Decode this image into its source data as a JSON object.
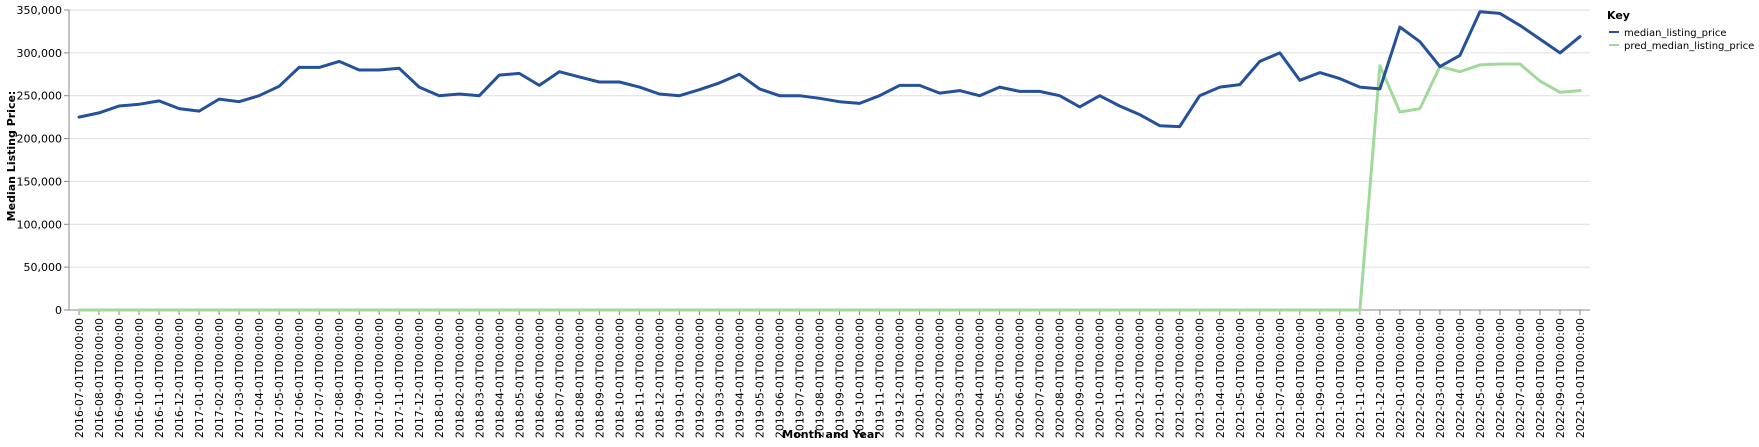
{
  "chart_data": {
    "type": "line",
    "xlabel": "Month and Year",
    "ylabel": "Median Listing Price:",
    "ylim": [
      0,
      350000
    ],
    "yticks": [
      0,
      50000,
      100000,
      150000,
      200000,
      250000,
      300000,
      350000
    ],
    "ytick_labels": [
      "0",
      "50,000",
      "100,000",
      "150,000",
      "200,000",
      "250,000",
      "300,000",
      "350,000"
    ],
    "grid": "horizontal",
    "legend": {
      "title": "Key",
      "placement": "top-right"
    },
    "x": [
      "2016-07-01T00:00:00",
      "2016-08-01T00:00:00",
      "2016-09-01T00:00:00",
      "2016-10-01T00:00:00",
      "2016-11-01T00:00:00",
      "2016-12-01T00:00:00",
      "2017-01-01T00:00:00",
      "2017-02-01T00:00:00",
      "2017-03-01T00:00:00",
      "2017-04-01T00:00:00",
      "2017-05-01T00:00:00",
      "2017-06-01T00:00:00",
      "2017-07-01T00:00:00",
      "2017-08-01T00:00:00",
      "2017-09-01T00:00:00",
      "2017-10-01T00:00:00",
      "2017-11-01T00:00:00",
      "2017-12-01T00:00:00",
      "2018-01-01T00:00:00",
      "2018-02-01T00:00:00",
      "2018-03-01T00:00:00",
      "2018-04-01T00:00:00",
      "2018-05-01T00:00:00",
      "2018-06-01T00:00:00",
      "2018-07-01T00:00:00",
      "2018-08-01T00:00:00",
      "2018-09-01T00:00:00",
      "2018-10-01T00:00:00",
      "2018-11-01T00:00:00",
      "2018-12-01T00:00:00",
      "2019-01-01T00:00:00",
      "2019-02-01T00:00:00",
      "2019-03-01T00:00:00",
      "2019-04-01T00:00:00",
      "2019-05-01T00:00:00",
      "2019-06-01T00:00:00",
      "2019-07-01T00:00:00",
      "2019-08-01T00:00:00",
      "2019-09-01T00:00:00",
      "2019-10-01T00:00:00",
      "2019-11-01T00:00:00",
      "2019-12-01T00:00:00",
      "2020-01-01T00:00:00",
      "2020-02-01T00:00:00",
      "2020-03-01T00:00:00",
      "2020-04-01T00:00:00",
      "2020-05-01T00:00:00",
      "2020-06-01T00:00:00",
      "2020-07-01T00:00:00",
      "2020-08-01T00:00:00",
      "2020-09-01T00:00:00",
      "2020-10-01T00:00:00",
      "2020-11-01T00:00:00",
      "2020-12-01T00:00:00",
      "2021-01-01T00:00:00",
      "2021-02-01T00:00:00",
      "2021-03-01T00:00:00",
      "2021-04-01T00:00:00",
      "2021-05-01T00:00:00",
      "2021-06-01T00:00:00",
      "2021-07-01T00:00:00",
      "2021-08-01T00:00:00",
      "2021-09-01T00:00:00",
      "2021-10-01T00:00:00",
      "2021-11-01T00:00:00",
      "2021-12-01T00:00:00",
      "2022-01-01T00:00:00",
      "2022-02-01T00:00:00",
      "2022-03-01T00:00:00",
      "2022-04-01T00:00:00",
      "2022-05-01T00:00:00",
      "2022-06-01T00:00:00",
      "2022-07-01T00:00:00",
      "2022-08-01T00:00:00",
      "2022-09-01T00:00:00",
      "2022-10-01T00:00:00"
    ],
    "series": [
      {
        "name": "median_listing_price",
        "color": "#25509a",
        "values": [
          225000,
          230000,
          238000,
          240000,
          244000,
          235000,
          232000,
          246000,
          243000,
          250000,
          261000,
          283000,
          283000,
          290000,
          280000,
          280000,
          282000,
          260000,
          250000,
          252000,
          250000,
          274000,
          276000,
          262000,
          278000,
          272000,
          266000,
          266000,
          260000,
          252000,
          250000,
          257000,
          265000,
          275000,
          258000,
          250000,
          250000,
          247000,
          243000,
          241000,
          250000,
          262000,
          262000,
          253000,
          256000,
          250000,
          260000,
          255000,
          255000,
          250000,
          237000,
          250000,
          238000,
          228000,
          215000,
          214000,
          250000,
          260000,
          263000,
          290000,
          300000,
          268000,
          277000,
          270000,
          260000,
          258000,
          330000,
          313000,
          284000,
          297000,
          348000,
          346000,
          332000,
          316000,
          300000,
          319000
        ]
      },
      {
        "name": "pred_median_listing_price",
        "color": "#a1d99b",
        "values": [
          0,
          0,
          0,
          0,
          0,
          0,
          0,
          0,
          0,
          0,
          0,
          0,
          0,
          0,
          0,
          0,
          0,
          0,
          0,
          0,
          0,
          0,
          0,
          0,
          0,
          0,
          0,
          0,
          0,
          0,
          0,
          0,
          0,
          0,
          0,
          0,
          0,
          0,
          0,
          0,
          0,
          0,
          0,
          0,
          0,
          0,
          0,
          0,
          0,
          0,
          0,
          0,
          0,
          0,
          0,
          0,
          0,
          0,
          0,
          0,
          0,
          0,
          0,
          0,
          0,
          285000,
          231000,
          235000,
          284000,
          278000,
          286000,
          287000,
          287000,
          267000,
          254000,
          256000
        ]
      }
    ]
  }
}
